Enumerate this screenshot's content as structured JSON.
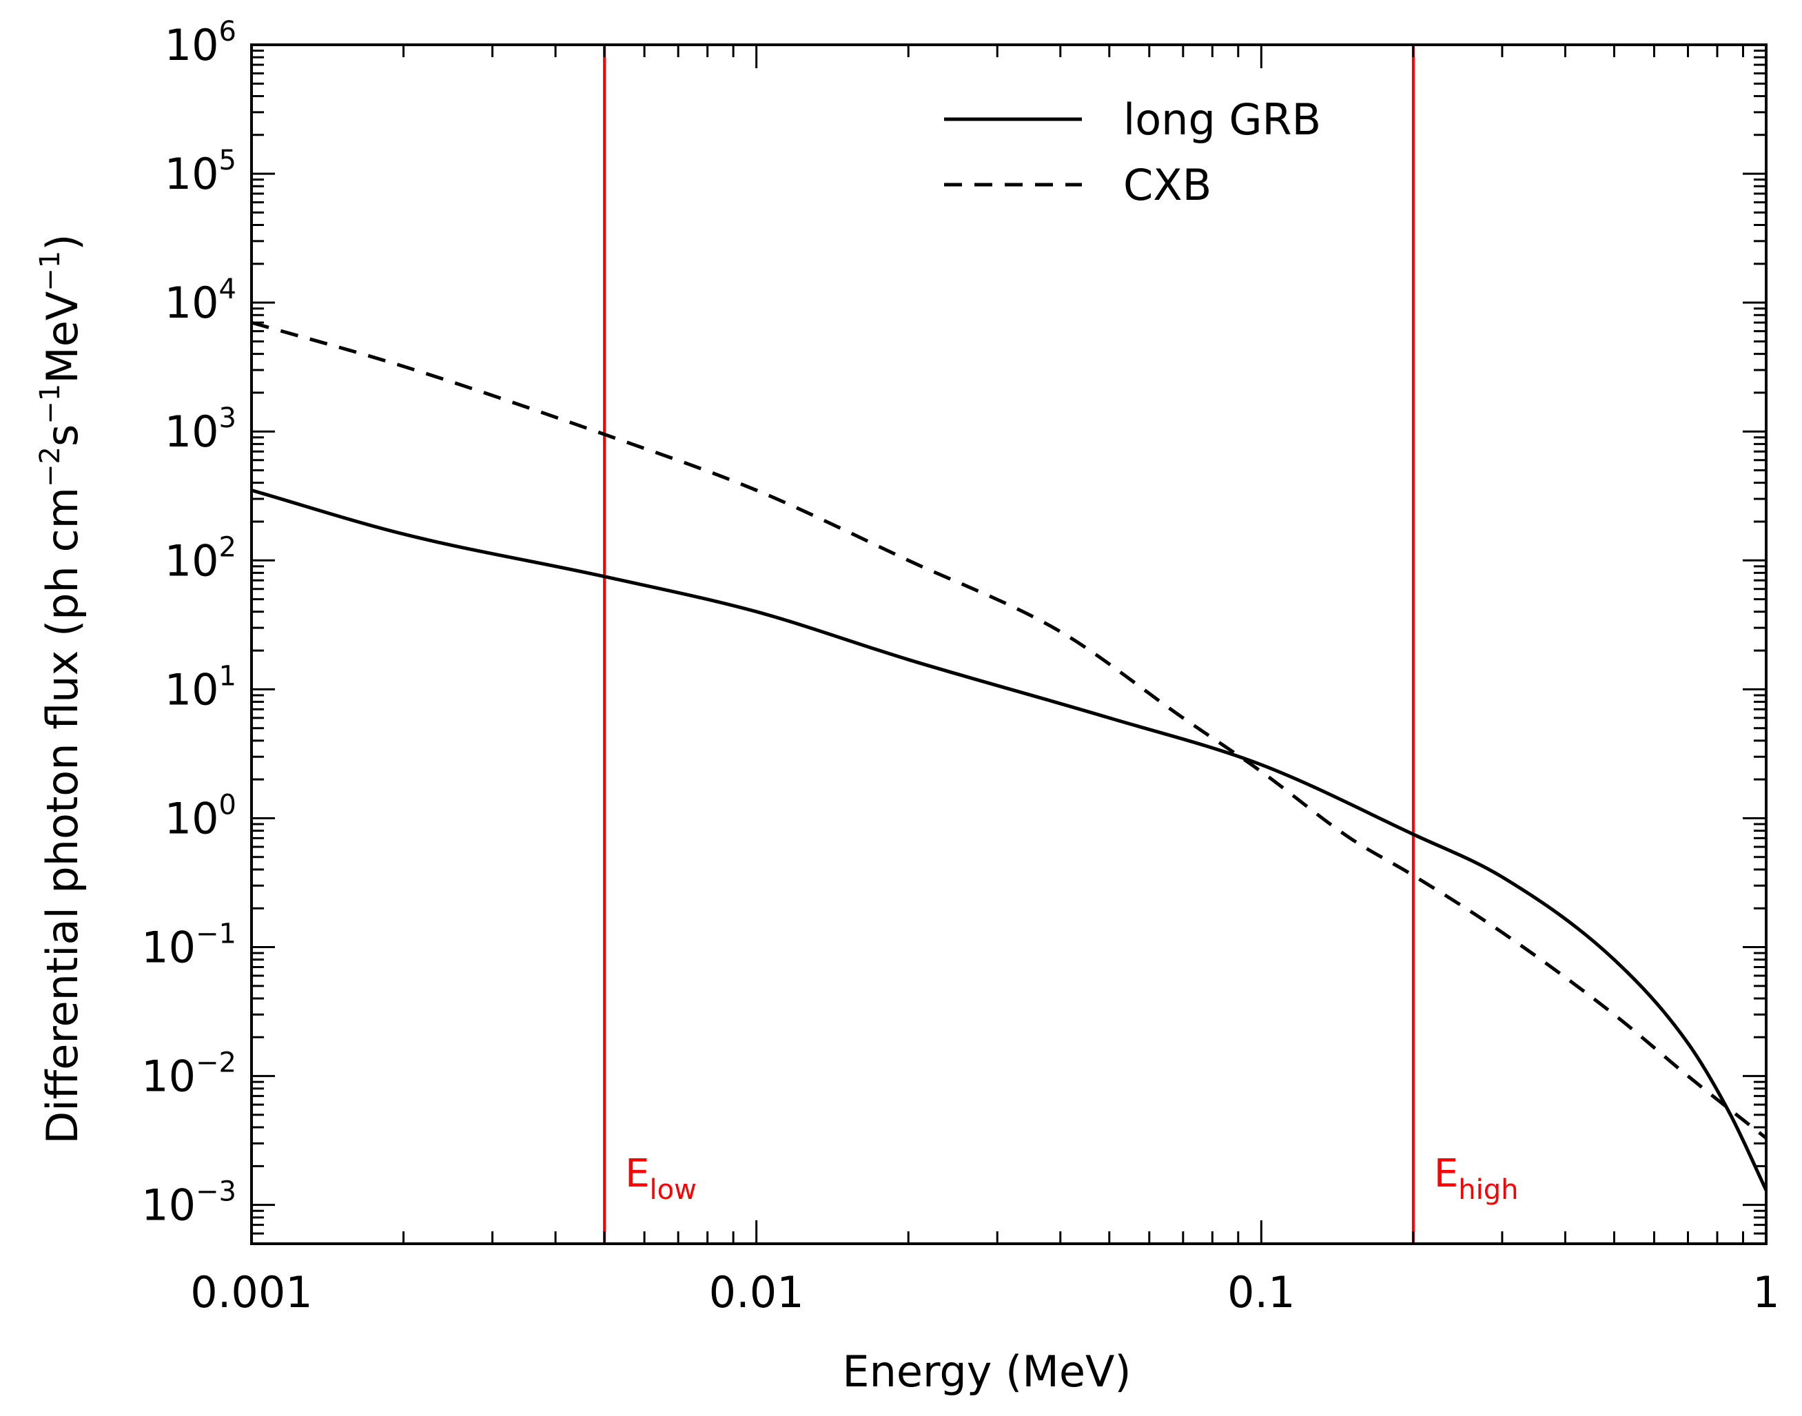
{
  "chart_data": {
    "type": "line",
    "title": "",
    "xlabel": "Energy (MeV)",
    "ylabel": {
      "prefix": "Differential photon flux (ph cm",
      "exp1": "−2",
      "mid1": "s",
      "exp2": "−1",
      "mid2": "MeV",
      "exp3": "−1",
      "suffix": ")"
    },
    "xscale": "log",
    "yscale": "log",
    "xlim": [
      0.001,
      1
    ],
    "ylim": [
      0.0005,
      1000000
    ],
    "x_ticks": [
      {
        "value": 0.001,
        "label": "0.001"
      },
      {
        "value": 0.01,
        "label": "0.01"
      },
      {
        "value": 0.1,
        "label": "0.1"
      },
      {
        "value": 1,
        "label": "1"
      }
    ],
    "y_ticks": [
      {
        "value": 0.001,
        "base": "10",
        "exp": "−3"
      },
      {
        "value": 0.01,
        "base": "10",
        "exp": "−2"
      },
      {
        "value": 0.1,
        "base": "10",
        "exp": "−1"
      },
      {
        "value": 1,
        "base": "10",
        "exp": "0"
      },
      {
        "value": 10,
        "base": "10",
        "exp": "1"
      },
      {
        "value": 100,
        "base": "10",
        "exp": "2"
      },
      {
        "value": 1000,
        "base": "10",
        "exp": "3"
      },
      {
        "value": 10000,
        "base": "10",
        "exp": "4"
      },
      {
        "value": 100000,
        "base": "10",
        "exp": "5"
      },
      {
        "value": 1000000,
        "base": "10",
        "exp": "6"
      }
    ],
    "series": [
      {
        "name": "long GRB",
        "style": "solid",
        "color": "#000000",
        "x": [
          0.001,
          0.002,
          0.005,
          0.01,
          0.02,
          0.05,
          0.1,
          0.2,
          0.3,
          0.5,
          0.7,
          0.85,
          1.0
        ],
        "y": [
          350,
          160,
          75,
          40,
          17,
          6,
          2.6,
          0.75,
          0.35,
          0.08,
          0.018,
          0.005,
          0.0013
        ]
      },
      {
        "name": "CXB",
        "style": "dashed",
        "color": "#000000",
        "x": [
          0.001,
          0.002,
          0.005,
          0.01,
          0.02,
          0.04,
          0.07,
          0.1,
          0.15,
          0.2,
          0.3,
          0.5,
          0.7,
          1.0
        ],
        "y": [
          7000,
          3200,
          950,
          350,
          100,
          28,
          6,
          2.3,
          0.7,
          0.36,
          0.13,
          0.03,
          0.01,
          0.0033
        ]
      }
    ],
    "markers": [
      {
        "x": 0.005,
        "base": "E",
        "sub": "low",
        "color": "#ff0000"
      },
      {
        "x": 0.2,
        "base": "E",
        "sub": "high",
        "color": "#ff0000"
      }
    ],
    "legend": {
      "position": "top-center"
    }
  }
}
